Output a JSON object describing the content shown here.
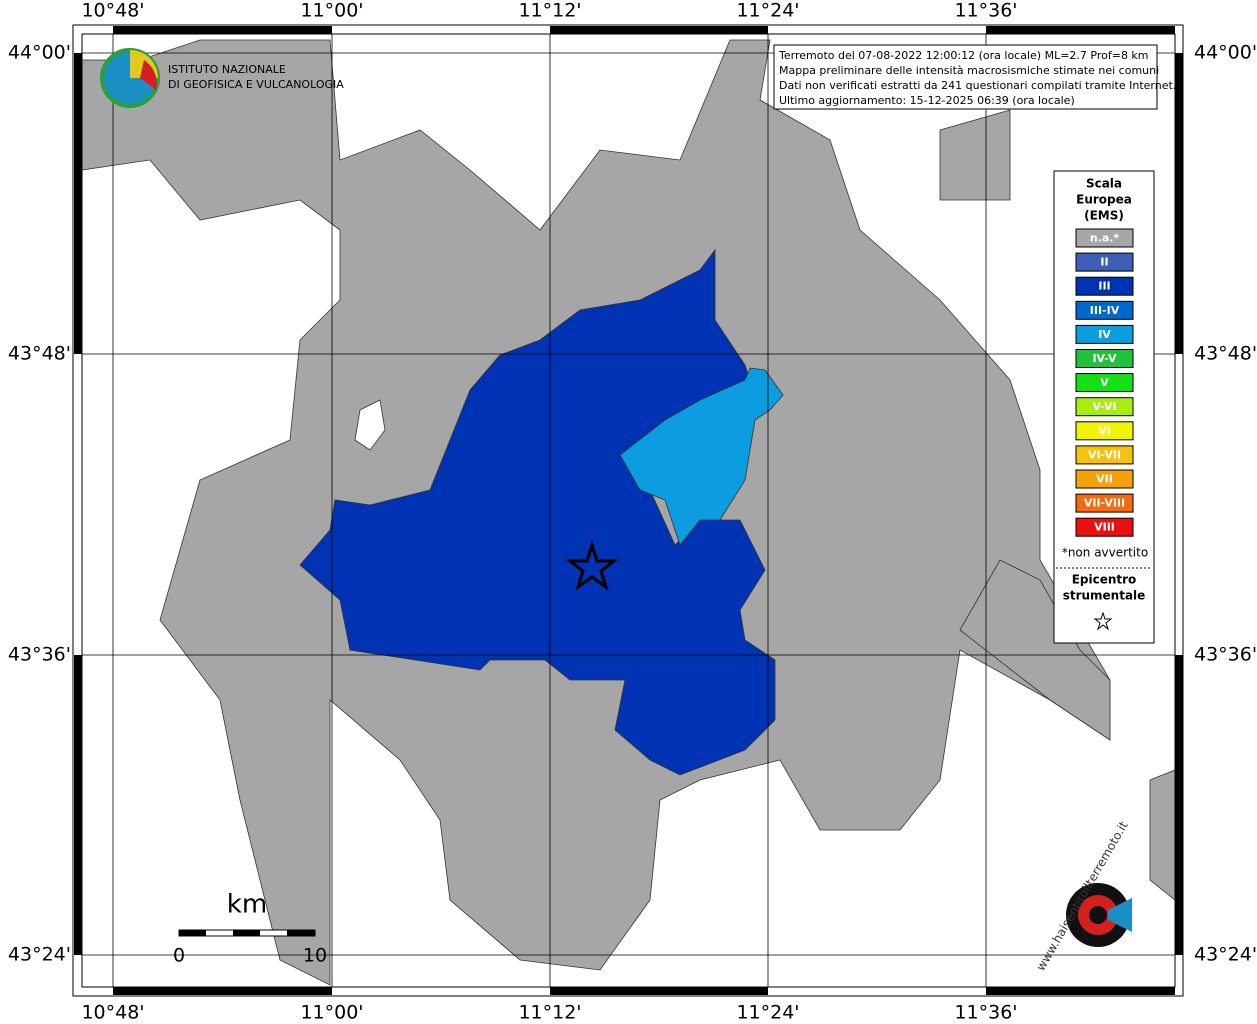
{
  "map": {
    "lon_labels": [
      "10°48'",
      "11°00'",
      "11°12'",
      "11°24'",
      "11°36'"
    ],
    "lat_labels": [
      "44°00'",
      "43°48'",
      "43°36'",
      "43°24'"
    ],
    "institute": [
      "ISTITUTO NAZIONALE",
      "DI GEOFISICA E VULCANOLOGIA"
    ],
    "info": [
      "Terremoto del 07-08-2022 12:00:12 (ora locale) ML=2.7 Prof=8 km",
      "Mappa preliminare delle intensità macrosismiche stimate nei comuni",
      "Dati non verificati estratti da 241 questionari compilati tramite Internet.",
      "Ultimo aggiornamento: 15-12-2025 06:39 (ora locale)"
    ],
    "legend": {
      "title": [
        "Scala",
        "Europea",
        "(EMS)"
      ],
      "items": [
        {
          "label": "n.a.*",
          "color": "#a6a6a6"
        },
        {
          "label": "II",
          "color": "#3e5fb8"
        },
        {
          "label": "III",
          "color": "#0033b3"
        },
        {
          "label": "III-IV",
          "color": "#0067cf"
        },
        {
          "label": "IV",
          "color": "#0b9de0"
        },
        {
          "label": "IV-V",
          "color": "#1fc23a"
        },
        {
          "label": "V",
          "color": "#13e113"
        },
        {
          "label": "V-VI",
          "color": "#a6ee10"
        },
        {
          "label": "VI",
          "color": "#f3f306"
        },
        {
          "label": "VI-VII",
          "color": "#f5c30b"
        },
        {
          "label": "VII",
          "color": "#f6a10a"
        },
        {
          "label": "VII-VIII",
          "color": "#f46a0c"
        },
        {
          "label": "VIII",
          "color": "#ea1010"
        }
      ],
      "note": "*non avvertito",
      "epicenter": [
        "Epicentro",
        "strumentale"
      ]
    },
    "scale": {
      "unit": "km",
      "start": "0",
      "end": "10"
    },
    "site": "www.haisentitoilterremoto.it"
  }
}
